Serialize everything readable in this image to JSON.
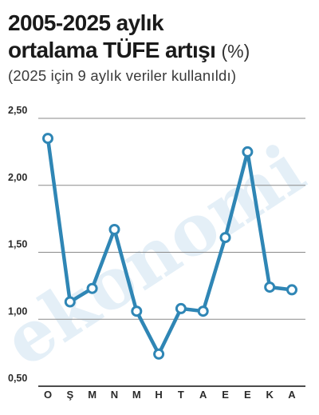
{
  "header": {
    "title_line1": "2005-2025 aylık",
    "title_line2": "ortalama TÜFE artışı",
    "title_unit": "(%)",
    "subtitle": "(2025 için 9 aylık veriler kullanıldı)"
  },
  "watermark": "ekonomi",
  "colors": {
    "line": "#2f86b5",
    "grid": "#8a8a8a",
    "axis": "#111111",
    "marker_fill": "#ffffff"
  },
  "chart_data": {
    "type": "line",
    "title": "2005-2025 aylık ortalama TÜFE artışı (%)",
    "subtitle": "(2025 için 9 aylık veriler kullanıldı)",
    "xlabel": "",
    "ylabel": "",
    "ylim": [
      0.5,
      2.5
    ],
    "yticks": [
      0.5,
      1.0,
      1.5,
      2.0,
      2.5
    ],
    "ytick_labels": [
      "0,50",
      "1,00",
      "1,50",
      "2,00",
      "2,50"
    ],
    "grid": true,
    "legend": "none",
    "categories": [
      "O",
      "Ş",
      "M",
      "N",
      "M",
      "H",
      "T",
      "A",
      "E",
      "E",
      "K",
      "A"
    ],
    "series": [
      {
        "values": [
          2.35,
          1.13,
          1.23,
          1.67,
          1.06,
          0.74,
          1.08,
          1.06,
          1.61,
          2.25,
          1.24,
          1.22
        ]
      }
    ]
  }
}
